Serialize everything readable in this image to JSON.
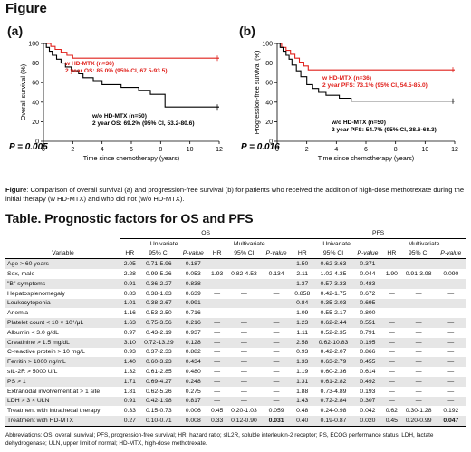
{
  "heading": "Figure",
  "charts": [
    {
      "label": "(a)",
      "ylabel": "Overall survival (%)",
      "xlabel": "Time since chemotherapy (years)",
      "pvalue": "P = 0.005",
      "red_label_1": "w HD-MTX (n=36)",
      "red_label_2": "2 year OS: 85.0% (95% CI, 67.5-93.5)",
      "black_label_1": "w/o HD-MTX (n=50)",
      "black_label_2": "2 year OS: 69.2% (95% CI, 53.2-80.6)"
    },
    {
      "label": "(b)",
      "ylabel": "Progression-free survival (%)",
      "xlabel": "Time since chemotherapy (years)",
      "pvalue": "P = 0.016",
      "red_label_1": "w HD-MTX (n=36)",
      "red_label_2": "2 year PFS: 73.1% (95% CI, 54.5-85.0)",
      "black_label_1": "w/o HD-MTX (n=50)",
      "black_label_2": "2 year PFS: 54.7% (95% CI, 38.6-68.3)"
    }
  ],
  "chart_data": [
    {
      "type": "line",
      "xlim": [
        0,
        12
      ],
      "ylim": [
        0,
        100
      ],
      "xticks": [
        "0",
        "2",
        "4",
        "6",
        "8",
        "10",
        "12"
      ],
      "yticks": [
        "0",
        "20",
        "40",
        "60",
        "80",
        "100"
      ],
      "series": [
        {
          "name": "w HD-MTX (n=36)",
          "color": "#e0201b",
          "x": [
            0,
            0.5,
            0.5,
            0.8,
            0.8,
            1.2,
            1.2,
            1.6,
            1.6,
            2.0,
            2.0,
            12
          ],
          "y": [
            100,
            100,
            97,
            97,
            94,
            94,
            91,
            91,
            88,
            88,
            85,
            85
          ]
        },
        {
          "name": "w/o HD-MTX (n=50)",
          "color": "#000000",
          "x": [
            0,
            0.2,
            0.2,
            0.4,
            0.4,
            0.6,
            0.6,
            0.9,
            0.9,
            1.2,
            1.2,
            1.5,
            1.5,
            1.9,
            1.9,
            2.4,
            2.4,
            2.7,
            2.7,
            3.4,
            3.4,
            4.0,
            4.0,
            5.3,
            5.3,
            6.5,
            6.5,
            7.3,
            7.3,
            8.3,
            8.3,
            12
          ],
          "y": [
            100,
            100,
            96,
            96,
            92,
            92,
            88,
            88,
            84,
            84,
            80,
            80,
            76,
            76,
            72,
            72,
            69,
            69,
            65,
            65,
            62,
            62,
            58,
            58,
            55,
            55,
            52,
            52,
            48,
            48,
            35,
            35
          ]
        }
      ]
    },
    {
      "type": "line",
      "xlim": [
        0,
        12
      ],
      "ylim": [
        0,
        100
      ],
      "xticks": [
        "0",
        "2",
        "4",
        "6",
        "8",
        "10",
        "12"
      ],
      "yticks": [
        "0",
        "20",
        "40",
        "60",
        "80",
        "100"
      ],
      "series": [
        {
          "name": "w HD-MTX (n=36)",
          "color": "#e0201b",
          "x": [
            0,
            0.3,
            0.3,
            0.6,
            0.6,
            0.9,
            0.9,
            1.2,
            1.2,
            1.5,
            1.5,
            1.8,
            1.8,
            2.1,
            2.1,
            12
          ],
          "y": [
            100,
            100,
            96,
            96,
            93,
            93,
            89,
            89,
            85,
            85,
            81,
            81,
            77,
            77,
            73,
            73
          ]
        },
        {
          "name": "w/o HD-MTX (n=50)",
          "color": "#000000",
          "x": [
            0,
            0.2,
            0.2,
            0.4,
            0.4,
            0.6,
            0.6,
            0.8,
            0.8,
            1.0,
            1.0,
            1.3,
            1.3,
            1.6,
            1.6,
            2.0,
            2.0,
            2.4,
            2.4,
            2.8,
            2.8,
            3.3,
            3.3,
            4.2,
            4.2,
            5.0,
            5.0,
            12
          ],
          "y": [
            100,
            100,
            96,
            96,
            92,
            92,
            88,
            88,
            84,
            84,
            78,
            78,
            72,
            72,
            66,
            66,
            58,
            58,
            54,
            54,
            50,
            50,
            47,
            47,
            44,
            44,
            41,
            41
          ]
        }
      ]
    }
  ],
  "caption": {
    "lead": "Figure",
    "text": ": Comparison of overall survival (a) and progression-free survival (b) for patients who received the addition of high-dose methotrexate during the initial therapy (w HD-MTX) and who did not (w/o HD-MTX)."
  },
  "table_title": "Table. Prognostic factors for OS and PFS",
  "table": {
    "group_headers": [
      "OS",
      "PFS"
    ],
    "sub_headers": [
      "Univariate",
      "Multivariate",
      "Univariate",
      "Multivariate"
    ],
    "variable_header": "Variable",
    "col_headers": [
      "HR",
      "95% CI",
      "P-value",
      "HR",
      "95% CI",
      "P-value",
      "HR",
      "95% CI",
      "P-value",
      "HR",
      "95% CI",
      "P-value"
    ],
    "rows": [
      [
        "Age > 60 years",
        "2.05",
        "0.71-5.96",
        "0.187",
        "—",
        "—",
        "—",
        "1.50",
        "0.62-3.63",
        "0.371",
        "—",
        "—",
        "—"
      ],
      [
        "Sex, male",
        "2.28",
        "0.99-5.26",
        "0.053",
        "1.93",
        "0.82-4.53",
        "0.134",
        "2.11",
        "1.02-4.35",
        "0.044",
        "1.90",
        "0.91-3.98",
        "0.090"
      ],
      [
        "\"B\" symptoms",
        "0.91",
        "0.36-2.27",
        "0.838",
        "—",
        "—",
        "—",
        "1.37",
        "0.57-3.33",
        "0.483",
        "—",
        "—",
        "—"
      ],
      [
        "Hepatosplenomegaly",
        "0.83",
        "0.38-1.83",
        "0.639",
        "—",
        "—",
        "—",
        "0.858",
        "0.42-1.75",
        "0.672",
        "—",
        "—",
        "—"
      ],
      [
        "Leukocytopenia",
        "1.01",
        "0.38-2.67",
        "0.991",
        "—",
        "—",
        "—",
        "0.84",
        "0.35-2.03",
        "0.695",
        "—",
        "—",
        "—"
      ],
      [
        "Anemia",
        "1.16",
        "0.53-2.50",
        "0.716",
        "—",
        "—",
        "—",
        "1.09",
        "0.55-2.17",
        "0.800",
        "—",
        "—",
        "—"
      ],
      [
        "Platelet count < 10 × 10⁴/μL",
        "1.63",
        "0.75-3.56",
        "0.216",
        "—",
        "—",
        "—",
        "1.23",
        "0.62-2.44",
        "0.551",
        "—",
        "—",
        "—"
      ],
      [
        "Albumin < 3.0 g/dL",
        "0.97",
        "0.43-2.19",
        "0.937",
        "—",
        "—",
        "—",
        "1.11",
        "0.52-2.35",
        "0.791",
        "—",
        "—",
        "—"
      ],
      [
        "Creatinine > 1.5 mg/dL",
        "3.10",
        "0.72-13.29",
        "0.128",
        "—",
        "—",
        "—",
        "2.58",
        "0.62-10.83",
        "0.195",
        "—",
        "—",
        "—"
      ],
      [
        "C-reactive protein > 10 mg/L",
        "0.93",
        "0.37-2.33",
        "0.882",
        "—",
        "—",
        "—",
        "0.93",
        "0.42-2.07",
        "0.866",
        "—",
        "—",
        "—"
      ],
      [
        "Ferritin > 1000 ng/mL",
        "1.40",
        "0.60-3.23",
        "0.434",
        "—",
        "—",
        "—",
        "1.33",
        "0.63-2.79",
        "0.455",
        "—",
        "—",
        "—"
      ],
      [
        "sIL-2R > 5000 U/L",
        "1.32",
        "0.61-2.85",
        "0.480",
        "—",
        "—",
        "—",
        "1.19",
        "0.60-2.36",
        "0.614",
        "—",
        "—",
        "—"
      ],
      [
        "PS > 1",
        "1.71",
        "0.69-4.27",
        "0.248",
        "—",
        "—",
        "—",
        "1.31",
        "0.61-2.82",
        "0.492",
        "—",
        "—",
        "—"
      ],
      [
        "Extranodal involvement at > 1 site",
        "1.81",
        "0.62-5.26",
        "0.275",
        "—",
        "—",
        "—",
        "1.88",
        "0.73-4.89",
        "0.193",
        "—",
        "—",
        "—"
      ],
      [
        "LDH > 3 × ULN",
        "0.91",
        "0.42-1.98",
        "0.817",
        "—",
        "—",
        "—",
        "1.43",
        "0.72-2.84",
        "0.307",
        "—",
        "—",
        "—"
      ],
      [
        "Treatment with intrathecal therapy",
        "0.33",
        "0.15-0.73",
        "0.006",
        "0.45",
        "0.20-1.03",
        "0.059",
        "0.48",
        "0.24-0.98",
        "0.042",
        "0.62",
        "0.30-1.28",
        "0.192"
      ],
      [
        "Treatment with HD-MTX",
        "0.27",
        "0.10-0.71",
        "0.008",
        "0.33",
        "0.12-0.90",
        "0.031",
        "0.40",
        "0.19-0.87",
        "0.020",
        "0.45",
        "0.20-0.99",
        "0.047"
      ]
    ]
  },
  "abbreviations": "Abbreviations: OS, overall survival; PFS, progression-free survival; HR, hazard ratio; sIL2R, soluble interleukin-2 receptor; PS, ECOG performance status; LDH, lactate dehydrogenase; ULN, upper limit of normal; HD-MTX, high-dose methotrexate."
}
